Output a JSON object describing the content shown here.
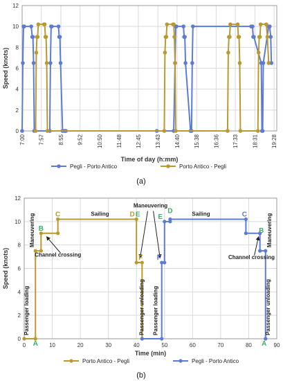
{
  "colors": {
    "blue": "#5b7bd5",
    "gold": "#b89a2e",
    "grid": "#d9d9d9",
    "green": "#3fae6a",
    "axis": "#888888"
  },
  "chart_data": [
    {
      "type": "line",
      "caption": "(a)",
      "xlabel": "Time of day (h:mm)",
      "ylabel": "Speed (knots)",
      "ylim": [
        0,
        12
      ],
      "yticks": [
        "0",
        "2",
        "4",
        "6",
        "8",
        "10",
        "12"
      ],
      "xticks": [
        "7:00",
        "7:57",
        "8:55",
        "9:52",
        "10:50",
        "11:48",
        "12:45",
        "13:43",
        "14:40",
        "15:38",
        "16:36",
        "17:33",
        "18:31",
        "19:28"
      ],
      "grid": true,
      "legend": "bottom",
      "series": [
        {
          "name": "Pegli - Porto Antico",
          "color": "#5b7bd5",
          "x": [
            "7:00",
            "7:02",
            "7:04",
            "7:06",
            "7:27",
            "7:30",
            "7:32",
            "7:34",
            "7:36",
            "8:22",
            "8:24",
            "8:26",
            "8:28",
            "8:48",
            "8:50",
            "8:52",
            "8:54",
            "9:00",
            "9:05",
            "9:08",
            "9:10",
            "13:40",
            "14:30",
            "14:34",
            "14:36",
            "14:38",
            "14:59",
            "15:01",
            "15:03",
            "15:05",
            "15:20",
            "15:23",
            "15:25",
            "15:27",
            "18:20",
            "18:24",
            "18:26",
            "18:28",
            "18:50",
            "18:52",
            "18:54",
            "18:56",
            "19:12",
            "19:15",
            "19:18",
            "19:20"
          ],
          "y": [
            0,
            6.5,
            10,
            10,
            10,
            9,
            9,
            6.5,
            0,
            0,
            6.5,
            10,
            10,
            10,
            9,
            9,
            6.5,
            0,
            0,
            0,
            0,
            0,
            0,
            6.5,
            10,
            10,
            10,
            9,
            9,
            6.5,
            0,
            0,
            6.5,
            10,
            10,
            10,
            9,
            9,
            6.5,
            0,
            0,
            6.5,
            10,
            10,
            9,
            6.5
          ]
        },
        {
          "name": "Porto Antico - Pegli",
          "color": "#b89a2e",
          "x": [
            "7:40",
            "7:42",
            "7:44",
            "7:46",
            "7:48",
            "8:05",
            "8:07",
            "8:09",
            "8:11",
            "8:13",
            "8:15",
            "14:02",
            "14:04",
            "14:06",
            "14:08",
            "14:10",
            "14:28",
            "14:30",
            "14:32",
            "14:34",
            "14:36",
            "17:10",
            "17:12",
            "17:14",
            "17:16",
            "17:18",
            "17:40",
            "17:42",
            "17:44",
            "17:46",
            "17:48",
            "18:40",
            "18:42",
            "18:44",
            "18:46",
            "18:48",
            "19:05",
            "19:08",
            "19:12"
          ],
          "y": [
            0,
            7.5,
            9,
            9,
            10.2,
            10.2,
            10.2,
            9,
            9,
            6.5,
            0,
            0,
            7.5,
            9,
            9,
            10.2,
            10.2,
            10.2,
            9,
            6.5,
            0,
            0,
            7.5,
            9,
            9,
            10.2,
            10.2,
            9,
            9,
            6.5,
            0,
            0,
            7.5,
            9,
            9,
            10.2,
            10.2,
            9,
            6.5
          ]
        }
      ]
    },
    {
      "type": "line",
      "caption": "(b)",
      "xlabel": "Time (min)",
      "ylabel": "Speed (knots)",
      "xlim": [
        0,
        90
      ],
      "ylim": [
        0,
        12
      ],
      "xticks": [
        "0",
        "10",
        "20",
        "30",
        "40",
        "50",
        "60",
        "70",
        "80",
        "90"
      ],
      "yticks": [
        "0",
        "2",
        "4",
        "6",
        "8",
        "10",
        "12"
      ],
      "grid": true,
      "legend": "bottom",
      "series": [
        {
          "name": "Porto Antico - Pegli",
          "color": "#b89a2e",
          "x": [
            0,
            4,
            4,
            6,
            6,
            12,
            12,
            40,
            40,
            42,
            42
          ],
          "y": [
            0,
            0,
            7.5,
            7.5,
            9,
            9,
            10.2,
            10.2,
            6.5,
            6.5,
            0
          ]
        },
        {
          "name": "Pegli - Porto Antico",
          "color": "#5b7bd5",
          "x": [
            42,
            49,
            49,
            50,
            50,
            52,
            52,
            79,
            79,
            84,
            84,
            86,
            86
          ],
          "y": [
            0,
            0,
            6.5,
            6.5,
            10,
            10,
            10.2,
            10.2,
            9,
            9,
            7.5,
            7.5,
            0
          ]
        }
      ],
      "annotations": [
        {
          "text": "Passenger loading",
          "x": 1.5,
          "y": 0.3,
          "rotate": true
        },
        {
          "text": "Maneuvering",
          "x": 3.5,
          "y": 7.8,
          "rotate": true
        },
        {
          "text": "Channel crossing",
          "x": 12,
          "y": 7
        },
        {
          "text": "Sailing",
          "x": 27,
          "y": 10.5
        },
        {
          "text": "Maneuvering",
          "x": 45,
          "y": 11.2
        },
        {
          "text": "Passenger unloading",
          "x": 42.5,
          "y": 0.3,
          "rotate": true
        },
        {
          "text": "Passenger loading",
          "x": 47.5,
          "y": 0.3,
          "rotate": true
        },
        {
          "text": "Sailing",
          "x": 63,
          "y": 10.5
        },
        {
          "text": "Channel crossing",
          "x": 81,
          "y": 6.8
        },
        {
          "text": "Maneuvering",
          "x": 88,
          "y": 7.8,
          "rotate": true
        },
        {
          "text": "Passenger unloading",
          "x": 87.5,
          "y": 0.3,
          "rotate": true
        }
      ],
      "point_labels": [
        {
          "text": "A",
          "x": 4,
          "y": 0,
          "color": "#3fae6a"
        },
        {
          "text": "B",
          "x": 6,
          "y": 9,
          "color": "#3fae6a"
        },
        {
          "text": "C",
          "x": 12,
          "y": 10.2,
          "color": "#b89a2e"
        },
        {
          "text": "D",
          "x": 38.5,
          "y": 10.2,
          "color": "#b89a2e"
        },
        {
          "text": "E",
          "x": 40.5,
          "y": 10.2,
          "color": "#3fae6a"
        },
        {
          "text": "F",
          "x": 41.5,
          "y": 6.5,
          "color": "#b89a2e"
        },
        {
          "text": "E",
          "x": 48.5,
          "y": 10,
          "color": "#3fae6a"
        },
        {
          "text": "D",
          "x": 52,
          "y": 10.5,
          "color": "#3fae6a"
        },
        {
          "text": "F",
          "x": 48,
          "y": 6.5,
          "color": "#5b7bd5"
        },
        {
          "text": "C",
          "x": 78.5,
          "y": 10.2,
          "color": "#5b7bd5"
        },
        {
          "text": "B",
          "x": 84.5,
          "y": 8.8,
          "color": "#3fae6a"
        },
        {
          "text": "A",
          "x": 85.5,
          "y": 0,
          "color": "#3fae6a"
        }
      ]
    }
  ]
}
